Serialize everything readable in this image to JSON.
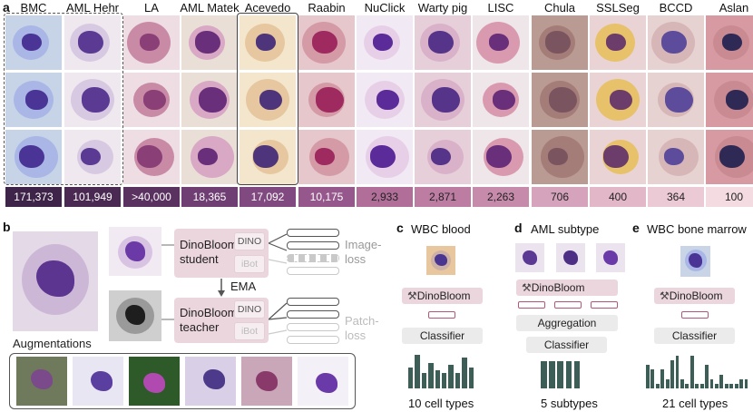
{
  "panels": {
    "a": "a",
    "b": "b",
    "c": "c",
    "d": "d",
    "e": "e"
  },
  "datasets": [
    {
      "name": "BMC",
      "count": "171,373",
      "count_bg": "#3e2448",
      "count_color": "#ffffff",
      "bg": "#c7d3e6",
      "cell": "#a9b6e6",
      "nuc": "#4a3596"
    },
    {
      "name": "AML Hehr",
      "count": "101,949",
      "count_bg": "#4a2a53",
      "count_color": "#ffffff",
      "bg": "#efe9ef",
      "cell": "#d8c9e2",
      "nuc": "#5a3a93"
    },
    {
      "name": "LA",
      "count": ">40,000",
      "count_bg": "#5a3260",
      "count_color": "#ffffff",
      "bg": "#eedee3",
      "cell": "#c98aa6",
      "nuc": "#8a3f76"
    },
    {
      "name": "AML Matek",
      "count": "18,365",
      "count_bg": "#6f3f74",
      "count_color": "#ffffff",
      "bg": "#eadfd6",
      "cell": "#d8a8c4",
      "nuc": "#6a2f7a"
    },
    {
      "name": "Acevedo",
      "count": "17,092",
      "count_bg": "#80497f",
      "count_color": "#ffffff",
      "bg": "#f3e6cd",
      "cell": "#e6c79f",
      "nuc": "#4e347a"
    },
    {
      "name": "Raabin",
      "count": "10,175",
      "count_bg": "#96578c",
      "count_color": "#ffffff",
      "bg": "#e6c7cb",
      "cell": "#d49aa6",
      "nuc": "#9e2a5f"
    },
    {
      "name": "NuClick",
      "count": "2,933",
      "count_bg": "#b06e98",
      "count_color": "#222222",
      "bg": "#f1e9f3",
      "cell": "#e8cfe8",
      "nuc": "#5b2b9a"
    },
    {
      "name": "Warty pig",
      "count": "2,871",
      "count_bg": "#bd7da2",
      "count_color": "#222222",
      "bg": "#e6cfd9",
      "cell": "#d9b1c9",
      "nuc": "#55348a"
    },
    {
      "name": "LISC",
      "count": "2,263",
      "count_bg": "#c68aab",
      "count_color": "#222222",
      "bg": "#efe6ea",
      "cell": "#d99ab0",
      "nuc": "#6a2f7a"
    },
    {
      "name": "Chula",
      "count": "706",
      "count_bg": "#d6a3bd",
      "count_color": "#222222",
      "bg": "#b99b93",
      "cell": "#a47c78",
      "nuc": "#7a5560"
    },
    {
      "name": "SSLSeg",
      "count": "400",
      "count_bg": "#e2b8c8",
      "count_color": "#222222",
      "bg": "#e9d3d4",
      "cell": "#e7c26a",
      "nuc": "#6c3c6a"
    },
    {
      "name": "BCCD",
      "count": "364",
      "count_bg": "#ebc9d5",
      "count_color": "#222222",
      "bg": "#e6d2d0",
      "cell": "#d6b6b6",
      "nuc": "#5d4b9b"
    },
    {
      "name": "Aslan",
      "count": "100",
      "count_bg": "#f3dbe1",
      "count_color": "#222222",
      "bg": "#d79aa2",
      "cell": "#c98a92",
      "nuc": "#2f2a55"
    }
  ],
  "panel_b": {
    "student": "DinoBloom\nstudent",
    "teacher": "DinoBloom\nteacher",
    "dino": "DINO",
    "ibot": "iBot",
    "ema": "EMA",
    "image_loss": "Image-\nloss",
    "patch_loss": "Patch-\nloss",
    "augmentations": "Augmentations",
    "aug_bgs": [
      "#6f7a5c",
      "#e9e6f3",
      "#2e5a2a",
      "#d9cfe6",
      "#c9a7b8",
      "#f3f0f7"
    ],
    "aug_nucs": [
      "#7a4a8a",
      "#5a3ea0",
      "#b04ab0",
      "#4e3a8a",
      "#8a3a6a",
      "#6a3aa8"
    ]
  },
  "panel_c": {
    "title": "WBC blood",
    "model": "DinoBloom",
    "classifier": "Classifier",
    "bottom": "10 cell types",
    "bars": [
      8,
      13,
      6,
      10,
      7,
      6,
      9,
      6,
      12,
      8
    ]
  },
  "panel_d": {
    "title": "AML subtype",
    "model": "DinoBloom",
    "aggregation": "Aggregation",
    "classifier": "Classifier",
    "bottom": "5 subtypes",
    "bars": [
      12,
      12,
      12,
      12,
      12
    ]
  },
  "panel_e": {
    "title": "WBC bone marrow",
    "model": "DinoBloom",
    "classifier": "Classifier",
    "bottom": "21 cell types",
    "bars": [
      5,
      4,
      1,
      4,
      2,
      6,
      7,
      2,
      1,
      7,
      1,
      1,
      5,
      2,
      1,
      3,
      1,
      1,
      1,
      2,
      2
    ]
  },
  "colors": {
    "pink": "#ecd6de",
    "accent": "#b0577a",
    "bar": "#3c5e57"
  }
}
